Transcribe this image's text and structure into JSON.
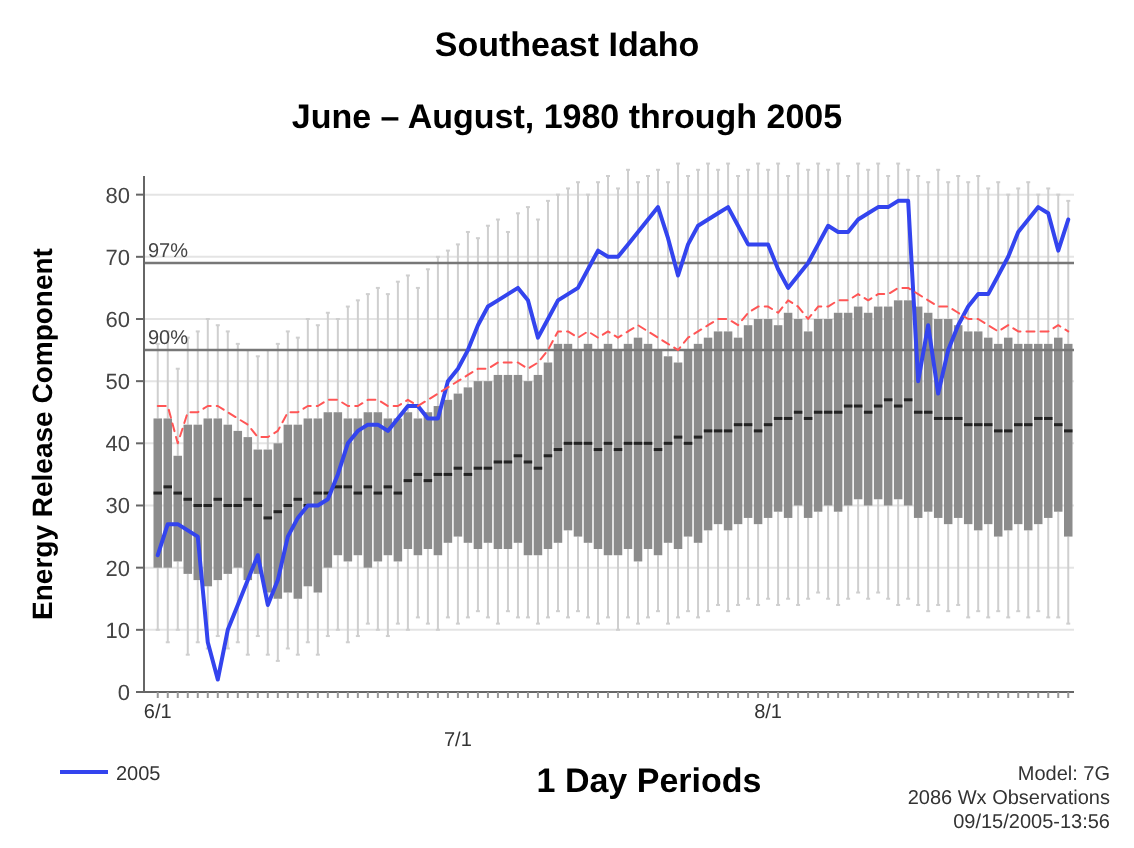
{
  "chart_data": {
    "type": "box",
    "title": "Southeast Idaho",
    "subtitle": "June – August, 1980 through 2005",
    "xlabel": "1 Day Periods",
    "ylabel": "Energy Release Component",
    "annotations": [
      "Model: 7G",
      "2086 Wx Observations",
      "09/15/2005-13:56",
      {
        "text": "97%",
        "y": 69
      },
      {
        "text": "90%",
        "y": 55
      }
    ],
    "categories": [
      "6/1",
      null,
      null,
      null,
      null,
      null,
      null,
      null,
      null,
      null,
      null,
      null,
      null,
      null,
      null,
      null,
      null,
      null,
      null,
      null,
      null,
      null,
      null,
      null,
      null,
      null,
      null,
      null,
      null,
      null,
      "7/1",
      null,
      null,
      null,
      null,
      null,
      null,
      null,
      null,
      null,
      null,
      null,
      null,
      null,
      null,
      null,
      null,
      null,
      null,
      null,
      null,
      null,
      null,
      null,
      null,
      null,
      null,
      null,
      null,
      null,
      null,
      "8/1",
      null,
      null,
      null,
      null,
      null,
      null,
      null,
      null,
      null,
      null,
      null,
      null,
      null,
      null,
      null,
      null,
      null,
      null,
      null,
      null,
      null,
      null,
      null,
      null,
      null,
      null,
      null,
      null,
      null,
      null
    ],
    "color": "#8c8c8c",
    "boxes": [
      {
        "low": 10,
        "q1": 20,
        "median": 32,
        "q3": 44,
        "high": 56
      },
      {
        "low": 8,
        "q1": 20,
        "median": 33,
        "q3": 44,
        "high": 58
      },
      {
        "low": 10,
        "q1": 21,
        "median": 32,
        "q3": 38,
        "high": 52
      },
      {
        "low": 6,
        "q1": 19,
        "median": 31,
        "q3": 43,
        "high": 57
      },
      {
        "low": 8,
        "q1": 18,
        "median": 30,
        "q3": 43,
        "high": 58
      },
      {
        "low": 7,
        "q1": 17,
        "median": 30,
        "q3": 44,
        "high": 60
      },
      {
        "low": 9,
        "q1": 18,
        "median": 31,
        "q3": 44,
        "high": 59
      },
      {
        "low": 7,
        "q1": 19,
        "median": 30,
        "q3": 43,
        "high": 58
      },
      {
        "low": 8,
        "q1": 20,
        "median": 30,
        "q3": 42,
        "high": 56
      },
      {
        "low": 6,
        "q1": 18,
        "median": 31,
        "q3": 41,
        "high": 55
      },
      {
        "low": 9,
        "q1": 19,
        "median": 30,
        "q3": 39,
        "high": 54
      },
      {
        "low": 6,
        "q1": 16,
        "median": 28,
        "q3": 39,
        "high": 55
      },
      {
        "low": 5,
        "q1": 15,
        "median": 29,
        "q3": 40,
        "high": 56
      },
      {
        "low": 7,
        "q1": 16,
        "median": 30,
        "q3": 43,
        "high": 58
      },
      {
        "low": 6,
        "q1": 15,
        "median": 31,
        "q3": 43,
        "high": 57
      },
      {
        "low": 8,
        "q1": 17,
        "median": 30,
        "q3": 44,
        "high": 60
      },
      {
        "low": 6,
        "q1": 16,
        "median": 32,
        "q3": 44,
        "high": 59
      },
      {
        "low": 9,
        "q1": 20,
        "median": 32,
        "q3": 45,
        "high": 61
      },
      {
        "low": 10,
        "q1": 22,
        "median": 33,
        "q3": 45,
        "high": 60
      },
      {
        "low": 8,
        "q1": 21,
        "median": 33,
        "q3": 44,
        "high": 62
      },
      {
        "low": 9,
        "q1": 22,
        "median": 32,
        "q3": 44,
        "high": 63
      },
      {
        "low": 11,
        "q1": 20,
        "median": 33,
        "q3": 45,
        "high": 64
      },
      {
        "low": 10,
        "q1": 21,
        "median": 32,
        "q3": 45,
        "high": 65
      },
      {
        "low": 9,
        "q1": 22,
        "median": 33,
        "q3": 44,
        "high": 64
      },
      {
        "low": 11,
        "q1": 21,
        "median": 32,
        "q3": 44,
        "high": 66
      },
      {
        "low": 10,
        "q1": 23,
        "median": 34,
        "q3": 45,
        "high": 67
      },
      {
        "low": 12,
        "q1": 22,
        "median": 35,
        "q3": 44,
        "high": 65
      },
      {
        "low": 11,
        "q1": 23,
        "median": 34,
        "q3": 45,
        "high": 68
      },
      {
        "low": 10,
        "q1": 22,
        "median": 35,
        "q3": 46,
        "high": 70
      },
      {
        "low": 12,
        "q1": 24,
        "median": 35,
        "q3": 47,
        "high": 71
      },
      {
        "low": 11,
        "q1": 25,
        "median": 36,
        "q3": 48,
        "high": 72
      },
      {
        "low": 12,
        "q1": 24,
        "median": 35,
        "q3": 49,
        "high": 74
      },
      {
        "low": 13,
        "q1": 23,
        "median": 36,
        "q3": 50,
        "high": 73
      },
      {
        "low": 12,
        "q1": 24,
        "median": 36,
        "q3": 50,
        "high": 75
      },
      {
        "low": 11,
        "q1": 23,
        "median": 37,
        "q3": 51,
        "high": 76
      },
      {
        "low": 13,
        "q1": 23,
        "median": 37,
        "q3": 51,
        "high": 74
      },
      {
        "low": 12,
        "q1": 24,
        "median": 38,
        "q3": 51,
        "high": 77
      },
      {
        "low": 12,
        "q1": 22,
        "median": 37,
        "q3": 50,
        "high": 78
      },
      {
        "low": 11,
        "q1": 22,
        "median": 36,
        "q3": 51,
        "high": 76
      },
      {
        "low": 12,
        "q1": 23,
        "median": 38,
        "q3": 53,
        "high": 79
      },
      {
        "low": 13,
        "q1": 24,
        "median": 39,
        "q3": 56,
        "high": 80
      },
      {
        "low": 12,
        "q1": 26,
        "median": 40,
        "q3": 56,
        "high": 81
      },
      {
        "low": 13,
        "q1": 25,
        "median": 40,
        "q3": 55,
        "high": 82
      },
      {
        "low": 12,
        "q1": 24,
        "median": 40,
        "q3": 56,
        "high": 80
      },
      {
        "low": 11,
        "q1": 23,
        "median": 39,
        "q3": 55,
        "high": 82
      },
      {
        "low": 12,
        "q1": 22,
        "median": 40,
        "q3": 56,
        "high": 83
      },
      {
        "low": 10,
        "q1": 22,
        "median": 39,
        "q3": 55,
        "high": 81
      },
      {
        "low": 12,
        "q1": 23,
        "median": 40,
        "q3": 56,
        "high": 84
      },
      {
        "low": 11,
        "q1": 21,
        "median": 40,
        "q3": 57,
        "high": 82
      },
      {
        "low": 12,
        "q1": 23,
        "median": 40,
        "q3": 56,
        "high": 83
      },
      {
        "low": 13,
        "q1": 22,
        "median": 39,
        "q3": 55,
        "high": 84
      },
      {
        "low": 11,
        "q1": 24,
        "median": 40,
        "q3": 54,
        "high": 82
      },
      {
        "low": 12,
        "q1": 23,
        "median": 41,
        "q3": 53,
        "high": 85
      },
      {
        "low": 13,
        "q1": 25,
        "median": 40,
        "q3": 55,
        "high": 83
      },
      {
        "low": 12,
        "q1": 24,
        "median": 41,
        "q3": 56,
        "high": 84
      },
      {
        "low": 13,
        "q1": 26,
        "median": 42,
        "q3": 57,
        "high": 85
      },
      {
        "low": 14,
        "q1": 27,
        "median": 42,
        "q3": 58,
        "high": 84
      },
      {
        "low": 13,
        "q1": 26,
        "median": 42,
        "q3": 58,
        "high": 85
      },
      {
        "low": 14,
        "q1": 27,
        "median": 43,
        "q3": 57,
        "high": 83
      },
      {
        "low": 15,
        "q1": 28,
        "median": 43,
        "q3": 59,
        "high": 84
      },
      {
        "low": 14,
        "q1": 27,
        "median": 42,
        "q3": 60,
        "high": 85
      },
      {
        "low": 15,
        "q1": 28,
        "median": 43,
        "q3": 60,
        "high": 84
      },
      {
        "low": 14,
        "q1": 29,
        "median": 44,
        "q3": 59,
        "high": 85
      },
      {
        "low": 15,
        "q1": 28,
        "median": 44,
        "q3": 61,
        "high": 83
      },
      {
        "low": 14,
        "q1": 30,
        "median": 45,
        "q3": 60,
        "high": 85
      },
      {
        "low": 15,
        "q1": 28,
        "median": 44,
        "q3": 58,
        "high": 84
      },
      {
        "low": 16,
        "q1": 29,
        "median": 45,
        "q3": 60,
        "high": 85
      },
      {
        "low": 15,
        "q1": 30,
        "median": 45,
        "q3": 60,
        "high": 84
      },
      {
        "low": 14,
        "q1": 29,
        "median": 45,
        "q3": 61,
        "high": 85
      },
      {
        "low": 15,
        "q1": 30,
        "median": 46,
        "q3": 61,
        "high": 83
      },
      {
        "low": 16,
        "q1": 31,
        "median": 46,
        "q3": 62,
        "high": 85
      },
      {
        "low": 15,
        "q1": 30,
        "median": 45,
        "q3": 61,
        "high": 84
      },
      {
        "low": 16,
        "q1": 31,
        "median": 46,
        "q3": 62,
        "high": 85
      },
      {
        "low": 15,
        "q1": 30,
        "median": 47,
        "q3": 62,
        "high": 83
      },
      {
        "low": 14,
        "q1": 31,
        "median": 46,
        "q3": 63,
        "high": 85
      },
      {
        "low": 15,
        "q1": 30,
        "median": 47,
        "q3": 63,
        "high": 84
      },
      {
        "low": 14,
        "q1": 28,
        "median": 45,
        "q3": 62,
        "high": 83
      },
      {
        "low": 13,
        "q1": 29,
        "median": 45,
        "q3": 61,
        "high": 82
      },
      {
        "low": 14,
        "q1": 28,
        "median": 44,
        "q3": 60,
        "high": 84
      },
      {
        "low": 13,
        "q1": 27,
        "median": 44,
        "q3": 60,
        "high": 82
      },
      {
        "low": 14,
        "q1": 28,
        "median": 44,
        "q3": 59,
        "high": 83
      },
      {
        "low": 12,
        "q1": 27,
        "median": 43,
        "q3": 58,
        "high": 82
      },
      {
        "low": 13,
        "q1": 26,
        "median": 43,
        "q3": 58,
        "high": 83
      },
      {
        "low": 12,
        "q1": 27,
        "median": 43,
        "q3": 57,
        "high": 81
      },
      {
        "low": 13,
        "q1": 25,
        "median": 42,
        "q3": 56,
        "high": 82
      },
      {
        "low": 12,
        "q1": 26,
        "median": 42,
        "q3": 57,
        "high": 80
      },
      {
        "low": 13,
        "q1": 27,
        "median": 43,
        "q3": 56,
        "high": 81
      },
      {
        "low": 12,
        "q1": 26,
        "median": 43,
        "q3": 56,
        "high": 82
      },
      {
        "low": 13,
        "q1": 27,
        "median": 44,
        "q3": 56,
        "high": 80
      },
      {
        "low": 12,
        "q1": 28,
        "median": 44,
        "q3": 56,
        "high": 81
      },
      {
        "low": 12,
        "q1": 29,
        "median": 43,
        "q3": 57,
        "high": 80
      },
      {
        "low": 11,
        "q1": 25,
        "median": 42,
        "q3": 56,
        "high": 79
      }
    ],
    "series": [
      {
        "name": "2005",
        "type": "line",
        "color": "#3344ee",
        "line_style": "solid",
        "values": [
          22,
          27,
          27,
          26,
          25,
          8,
          2,
          10,
          14,
          18,
          22,
          14,
          18,
          25,
          28,
          30,
          30,
          31,
          35,
          40,
          42,
          43,
          43,
          42,
          44,
          46,
          46,
          44,
          44,
          50,
          52,
          55,
          59,
          62,
          63,
          64,
          65,
          63,
          57,
          60,
          63,
          64,
          65,
          68,
          71,
          70,
          70,
          72,
          74,
          76,
          78,
          73,
          67,
          72,
          75,
          76,
          77,
          78,
          75,
          72,
          72,
          72,
          68,
          65,
          67,
          69,
          72,
          75,
          74,
          74,
          76,
          77,
          78,
          78,
          79,
          79,
          50,
          59,
          48,
          55,
          59,
          62,
          64,
          64,
          67,
          70,
          74,
          76,
          78,
          77,
          71,
          76
        ]
      },
      {
        "type": "line",
        "color": "#ff5555",
        "line_style": "dashed",
        "values": [
          46,
          46,
          40,
          45,
          45,
          46,
          46,
          45,
          44,
          43,
          41,
          41,
          42,
          45,
          45,
          46,
          46,
          47,
          47,
          46,
          46,
          47,
          47,
          46,
          46,
          47,
          46,
          47,
          48,
          49,
          50,
          51,
          52,
          52,
          53,
          53,
          53,
          52,
          53,
          55,
          58,
          58,
          57,
          58,
          57,
          58,
          57,
          58,
          59,
          58,
          57,
          56,
          55,
          57,
          58,
          59,
          60,
          60,
          59,
          61,
          62,
          62,
          61,
          63,
          62,
          60,
          62,
          62,
          63,
          63,
          64,
          63,
          64,
          64,
          65,
          65,
          64,
          63,
          62,
          62,
          61,
          60,
          60,
          59,
          58,
          59,
          58,
          58,
          58,
          58,
          59,
          58
        ]
      }
    ],
    "ylim": [
      0,
      83
    ],
    "yticks": [
      0,
      10,
      20,
      30,
      40,
      50,
      60,
      70,
      80
    ],
    "grid": "y",
    "legend": "bottom left",
    "ref_lines": [
      {
        "axis": "y",
        "value": 69
      },
      {
        "axis": "y",
        "value": 55
      }
    ]
  }
}
